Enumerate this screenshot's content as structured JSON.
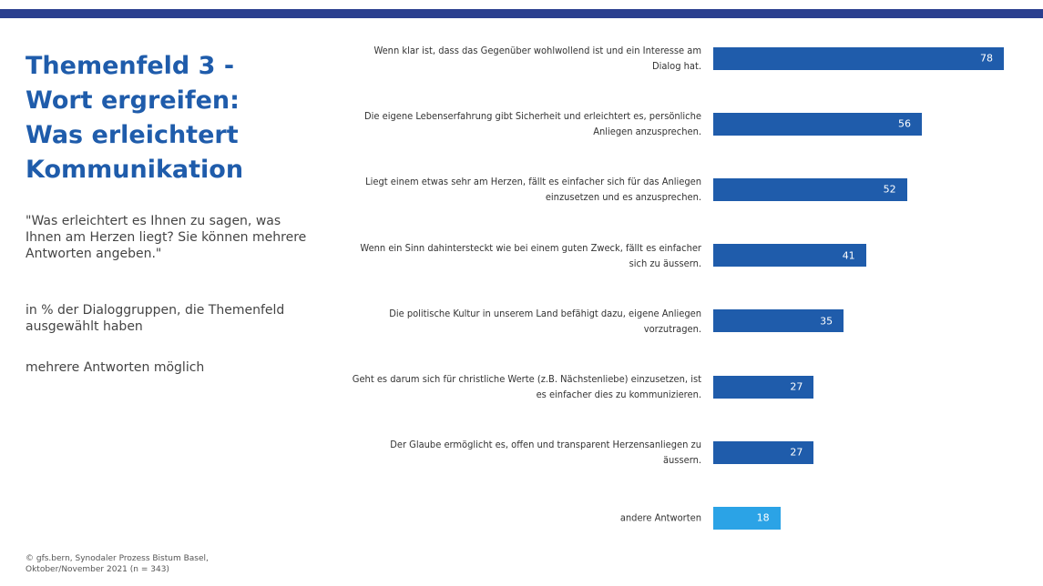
{
  "header": {
    "title": "Themenfeld 3 - Wort ergreifen: Was erleichtert Kommunikation",
    "question": "\"Was erleichtert es Ihnen zu sagen, was Ihnen am Herzen liegt? Sie können mehrere Antworten angeben.\"",
    "note": "in % der Dialoggruppen, die Themenfeld ausgewählt haben",
    "note2": "mehrere Antworten möglich"
  },
  "footer": {
    "source": "© gfs.bern, Synodaler Prozess Bistum Basel, Oktober/November 2021 (n = 343)"
  },
  "chart_data": {
    "type": "barh",
    "categories": [
      "Wenn klar ist, dass das Gegenüber wohlwollend ist und ein Interesse am Dialog hat.",
      "Die eigene Lebenserfahrung gibt Sicherheit und erleichtert es, persönliche Anliegen anzusprechen.",
      "Liegt einem etwas sehr am Herzen, fällt es einfacher sich für das Anliegen einzusetzen und es anzusprechen.",
      "Wenn ein Sinn dahintersteckt wie bei einem guten Zweck, fällt es einfacher sich zu äussern.",
      "Die politische Kultur in unserem Land befähigt dazu, eigene Anliegen vorzutragen.",
      "Geht es darum sich für christliche Werte (z.B. Nächstenliebe) einzusetzen, ist es einfacher dies zu kommunizieren.",
      "Der Glaube ermöglicht es, offen und transparent Herzensanliegen zu äussern.",
      "andere Antworten"
    ],
    "values": [
      78,
      56,
      52,
      41,
      35,
      27,
      27,
      18
    ],
    "colors": [
      "#1f5cab",
      "#1f5cab",
      "#1f5cab",
      "#1f5cab",
      "#1f5cab",
      "#1f5cab",
      "#1f5cab",
      "#2ba3e6"
    ]
  }
}
